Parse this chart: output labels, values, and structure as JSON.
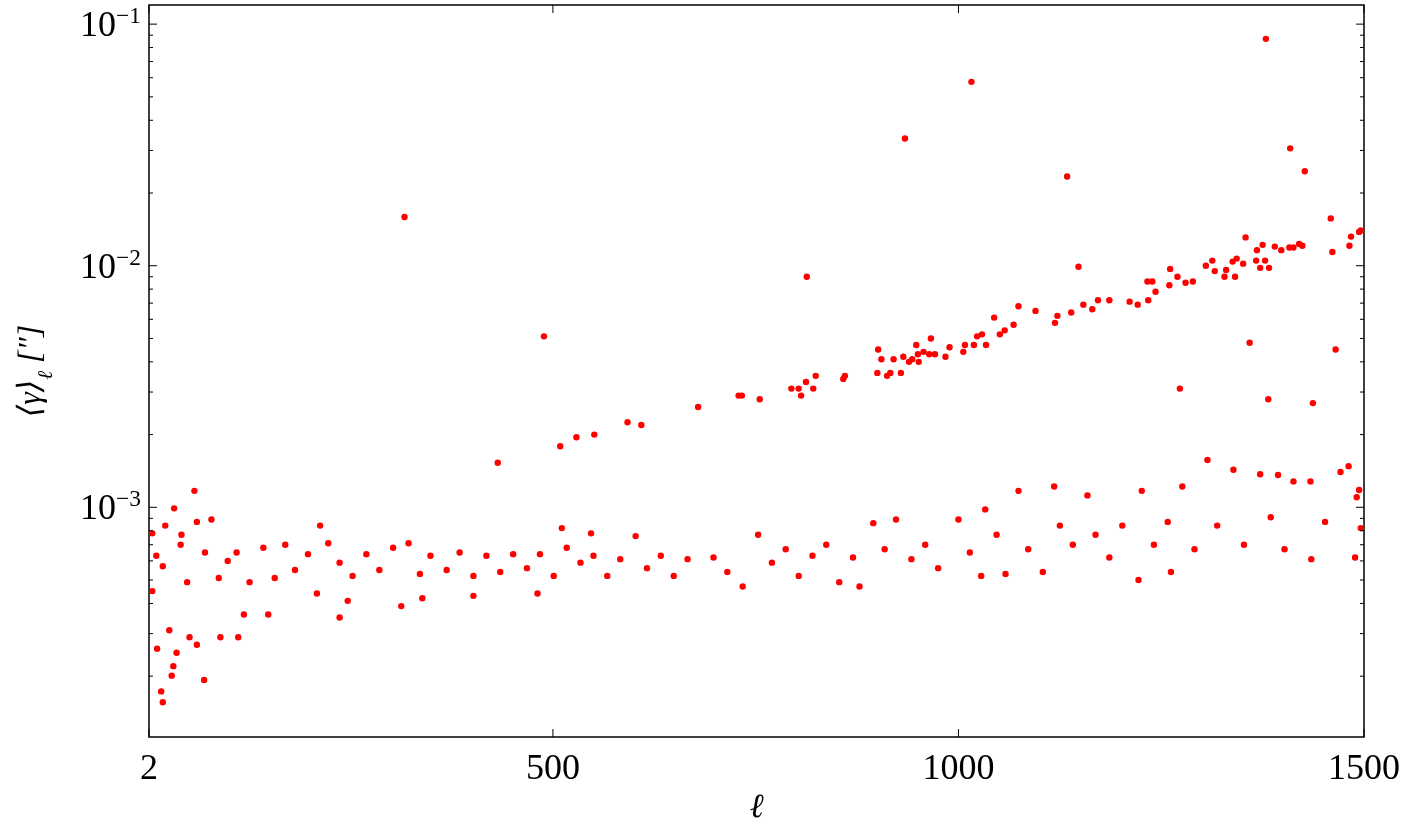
{
  "chart_data": {
    "type": "scatter",
    "xlabel": "ℓ",
    "ylabel": "⟨γ⟩$_{ℓ}$ [″]",
    "log": "y",
    "marker": "circle",
    "grid": false,
    "xlim": [
      2,
      1500
    ],
    "xticks": [
      2,
      500,
      1000,
      1500
    ],
    "ylim": [
      0.000112,
      0.12
    ],
    "yticks": [
      {
        "value": 0.0002,
        "label": null
      },
      {
        "value": 0.0003,
        "label": null
      },
      {
        "value": 0.0004,
        "label": null
      },
      {
        "value": 0.0005,
        "label": null
      },
      {
        "value": 0.0006,
        "label": null
      },
      {
        "value": 0.0007,
        "label": null
      },
      {
        "value": 0.0008,
        "label": null
      },
      {
        "value": 0.0009,
        "label": null
      },
      {
        "value": 0.001,
        "label": "10$^{−3}$"
      },
      {
        "value": 0.002,
        "label": null
      },
      {
        "value": 0.003,
        "label": null
      },
      {
        "value": 0.004,
        "label": null
      },
      {
        "value": 0.005,
        "label": null
      },
      {
        "value": 0.006,
        "label": null
      },
      {
        "value": 0.007,
        "label": null
      },
      {
        "value": 0.008,
        "label": null
      },
      {
        "value": 0.009,
        "label": null
      },
      {
        "value": 0.01,
        "label": "10$^{−2}$"
      },
      {
        "value": 0.02,
        "label": null
      },
      {
        "value": 0.03,
        "label": null
      },
      {
        "value": 0.04,
        "label": null
      },
      {
        "value": 0.05,
        "label": null
      },
      {
        "value": 0.06,
        "label": null
      },
      {
        "value": 0.07,
        "label": null
      },
      {
        "value": 0.08,
        "label": null
      },
      {
        "value": 0.09,
        "label": null
      },
      {
        "value": 0.1,
        "label": "10$^{−1}$"
      }
    ],
    "series": [
      {
        "color": "#ff0000",
        "x": [
          1379,
          1016,
          934,
          1409,
          1427,
          1134,
          1459,
          1484,
          1494,
          1496,
          1482,
          1461,
          1354,
          1375,
          1368,
          1390,
          1398,
          1408,
          1413,
          1420,
          1424,
          1367,
          1378,
          1372,
          1383,
          1343,
          1338,
          1351,
          1313,
          1305,
          1316,
          1330,
          1328,
          1341,
          1148,
          1261,
          1270,
          1260,
          1280,
          1289,
          1233,
          1239,
          1243,
          1234,
          1211,
          1221,
          1186,
          1172,
          1165,
          1154,
          1139,
          1122,
          1119,
          1095,
          1074,
          1068,
          1057,
          1051,
          1044,
          1034,
          1029,
          1023,
          1019,
          1008,
          1006,
          989,
          984,
          971,
          966,
          964,
          957,
          951,
          950,
          948,
          943,
          939,
          932,
          929,
          920,
          916,
          912,
          905,
          901,
          900,
          860,
          858,
          824,
          821,
          812,
          813,
          806,
          803,
          794,
          755,
          733,
          729,
          1359,
          1465,
          1273,
          1382,
          1437,
          317,
          489,
          679,
          432,
          509,
          529,
          551,
          592,
          609,
          58,
          33,
          19,
          17,
          70,
          12,
          30,
          32,
          6,
          22,
          42,
          61,
          79,
          213,
          6,
          27,
          36,
          52,
          61,
          90,
          112,
          119,
          149,
          237,
          313,
          339,
          402,
          481,
          511,
          547,
          247,
          11,
          19,
          41,
          49,
          71,
          88,
          99,
          110,
          126,
          143,
          157,
          170,
          182,
          198,
          209,
          223,
          237,
          253,
          270,
          286,
          303,
          322,
          336,
          349,
          369,
          385,
          402,
          418,
          435,
          451,
          468,
          484,
          501,
          517,
          534,
          550,
          567,
          583,
          602,
          616,
          633,
          649,
          666,
          698,
          715,
          734,
          753,
          770,
          787,
          803,
          820,
          837,
          853,
          870,
          878,
          895,
          909,
          923,
          942,
          959,
          975,
          1000,
          1014,
          1028,
          1033,
          1047,
          1058,
          1074,
          1086,
          1104,
          1118,
          1125,
          1141,
          1159,
          1169,
          1186,
          1202,
          1222,
          1226,
          1241,
          1258,
          1262,
          1276,
          1291,
          1307,
          1319,
          1339,
          1352,
          1372,
          1385,
          1394,
          1402,
          1413,
          1434,
          1435,
          1452,
          1471,
          1481,
          1489,
          1494,
          1496,
          1491
        ],
        "values": [
          0.0869,
          0.0577,
          0.0336,
          0.0306,
          0.0246,
          0.0234,
          0.0157,
          0.0132,
          0.0138,
          0.014,
          0.0121,
          0.0114,
          0.0131,
          0.0122,
          0.0116,
          0.012,
          0.0116,
          0.0119,
          0.0119,
          0.0123,
          0.0121,
          0.0105,
          0.0105,
          0.0098,
          0.0098,
          0.0107,
          0.0104,
          0.0102,
          0.0105,
          0.01,
          0.0095,
          0.0096,
          0.009,
          0.009,
          0.0099,
          0.0097,
          0.009,
          0.0083,
          0.0085,
          0.0086,
          0.0086,
          0.0086,
          0.0078,
          0.0072,
          0.0071,
          0.0069,
          0.0072,
          0.0072,
          0.0066,
          0.0069,
          0.0064,
          0.0062,
          0.0058,
          0.0065,
          0.0068,
          0.0057,
          0.0054,
          0.0052,
          0.0061,
          0.0047,
          0.0052,
          0.0051,
          0.0047,
          0.0047,
          0.0044,
          0.0046,
          0.0042,
          0.0043,
          0.005,
          0.0043,
          0.0044,
          0.004,
          0.0043,
          0.0047,
          0.0041,
          0.004,
          0.0042,
          0.0036,
          0.0041,
          0.0036,
          0.0035,
          0.0041,
          0.0045,
          0.0036,
          0.0035,
          0.0034,
          0.0035,
          0.0031,
          0.0033,
          0.009,
          0.0029,
          0.0031,
          0.0031,
          0.0028,
          0.0029,
          0.0029,
          0.0048,
          0.0045,
          0.0031,
          0.0028,
          0.0027,
          0.0159,
          0.0051,
          0.0026,
          0.00153,
          0.00179,
          0.00195,
          0.002,
          0.00225,
          0.00219,
          0.00117,
          0.00099,
          0.000156,
          0.000173,
          0.000193,
          0.00026,
          0.000201,
          0.00022,
          0.00078,
          0.00084,
          0.00077,
          0.00087,
          0.00089,
          0.00084,
          0.00045,
          0.00031,
          0.00025,
          0.00029,
          0.00027,
          0.00029,
          0.00029,
          0.00036,
          0.00036,
          0.00035,
          0.00039,
          0.00042,
          0.00043,
          0.00044,
          0.00082,
          0.00078,
          0.00041,
          0.00063,
          0.00057,
          0.0007,
          0.00049,
          0.00065,
          0.00051,
          0.0006,
          0.00065,
          0.00049,
          0.00068,
          0.00051,
          0.0007,
          0.00055,
          0.00064,
          0.00044,
          0.00071,
          0.00059,
          0.00052,
          0.00064,
          0.00055,
          0.00068,
          0.00071,
          0.00053,
          0.00063,
          0.00055,
          0.00065,
          0.00052,
          0.00063,
          0.00054,
          0.00064,
          0.00056,
          0.00064,
          0.00052,
          0.00068,
          0.00059,
          0.00063,
          0.00052,
          0.00061,
          0.00076,
          0.00056,
          0.00063,
          0.00052,
          0.00061,
          0.00062,
          0.00054,
          0.00047,
          0.00077,
          0.00059,
          0.00067,
          0.00052,
          0.00063,
          0.0007,
          0.00049,
          0.00062,
          0.00047,
          0.00086,
          0.00067,
          0.00089,
          0.00061,
          0.0007,
          0.00056,
          0.00089,
          0.00065,
          0.00052,
          0.00098,
          0.00077,
          0.00053,
          0.00117,
          0.00067,
          0.00054,
          0.00122,
          0.00084,
          0.0007,
          0.00112,
          0.00077,
          0.00062,
          0.00084,
          0.0005,
          0.00117,
          0.0007,
          0.00087,
          0.00054,
          0.00122,
          0.00067,
          0.00157,
          0.00084,
          0.00143,
          0.0007,
          0.00137,
          0.00091,
          0.00136,
          0.00067,
          0.00128,
          0.00128,
          0.00061,
          0.00087,
          0.0014,
          0.00148,
          0.00062,
          0.00118,
          0.00082,
          0.0011
        ]
      }
    ]
  }
}
